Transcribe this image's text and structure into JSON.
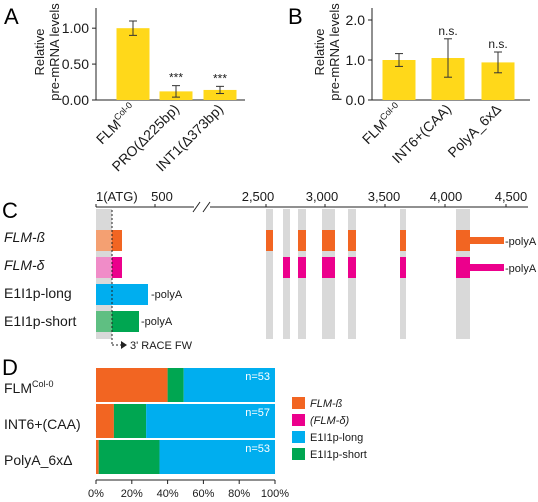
{
  "panels": {
    "A": {
      "letter": "A",
      "ylabel_lines": [
        "Relative",
        "pre-mRNA levels"
      ],
      "categories": [
        {
          "main": "FLM",
          "sup": "Col-0"
        },
        {
          "main": "PRO(Δ225bp)",
          "sup": ""
        },
        {
          "main": "INT1(Δ373bp)",
          "sup": ""
        }
      ],
      "ytick_labels": [
        "0.00",
        "0.50",
        "1.00"
      ],
      "significance": [
        "",
        "***",
        "***"
      ]
    },
    "B": {
      "letter": "B",
      "ylabel_lines": [
        "Relative",
        "pre-mRNA levels"
      ],
      "categories": [
        {
          "main": "FLM",
          "sup": "Col-0"
        },
        {
          "main": "INT6+(CAA)",
          "sup": ""
        },
        {
          "main": "PolyA_6xΔ",
          "sup": ""
        }
      ],
      "ytick_labels": [
        "0.0",
        "1.0",
        "2.0"
      ],
      "significance": [
        "",
        "n.s.",
        "n.s."
      ]
    },
    "C": {
      "letter": "C",
      "axis_labels_left": [
        "1(ATG)",
        "500"
      ],
      "axis_labels_right": [
        "2,500",
        "3,000",
        "3,500",
        "4,000",
        "4,500"
      ],
      "tracks": [
        {
          "label": "FLM-ß",
          "italic": true,
          "color": "#f26522",
          "end_text": "-polyA"
        },
        {
          "label": "FLM-δ",
          "italic": true,
          "color": "#ec008c",
          "end_text": "-polyA"
        },
        {
          "label": "E1I1p-long",
          "italic": false,
          "color": "#00aeef",
          "end_text": "-polyA"
        },
        {
          "label": "E1I1p-short",
          "italic": false,
          "color": "#00a651",
          "end_text": "-polyA"
        }
      ],
      "primer_label": "3' RACE FW"
    },
    "D": {
      "letter": "D",
      "rows": [
        {
          "main": "FLM",
          "sup": "Col-0",
          "n_label": "n=53"
        },
        {
          "main": "INT6+(CAA)",
          "sup": "",
          "n_label": "n=57"
        },
        {
          "main": "PolyA_6xΔ",
          "sup": "",
          "n_label": "n=53"
        }
      ],
      "xtick_labels": [
        "0%",
        "20%",
        "40%",
        "60%",
        "80%",
        "100%"
      ],
      "legend": [
        {
          "label": "FLM-ß",
          "italic": true,
          "color": "#f26522"
        },
        {
          "label": "(FLM-δ)",
          "italic": true,
          "color": "#ec008c"
        },
        {
          "label": "E1I1p-long",
          "italic": false,
          "color": "#00aeef"
        },
        {
          "label": "E1I1p-short",
          "italic": false,
          "color": "#00a651"
        }
      ]
    }
  },
  "chart_data": [
    {
      "type": "bar",
      "categories": [
        "FLM Col-0",
        "PRO(Δ225bp)",
        "INT1(Δ373bp)"
      ],
      "values": [
        1.0,
        0.12,
        0.14
      ],
      "errors": [
        0.1,
        0.08,
        0.05
      ],
      "ylim": [
        0,
        1.1
      ],
      "bar_color": "#ffd81a",
      "grid": false
    },
    {
      "type": "bar",
      "categories": [
        "FLM Col-0",
        "INT6+(CAA)",
        "PolyA_6xΔ"
      ],
      "values": [
        1.0,
        1.05,
        0.94
      ],
      "errors": [
        0.16,
        0.48,
        0.26
      ],
      "ylim": [
        0,
        2.1
      ],
      "bar_color": "#ffd81a",
      "grid": false
    },
    {
      "type": "bar",
      "stacked": true,
      "orientation": "horizontal",
      "categories": [
        "FLM Col-0",
        "INT6+(CAA)",
        "PolyA_6xΔ"
      ],
      "series": [
        {
          "name": "FLM-ß",
          "values": [
            40,
            10,
            1.5
          ],
          "color": "#f26522"
        },
        {
          "name": "(FLM-δ)",
          "values": [
            0,
            0,
            0
          ],
          "color": "#ec008c"
        },
        {
          "name": "E1I1p-short",
          "values": [
            9,
            18,
            34
          ],
          "color": "#00a651"
        },
        {
          "name": "E1I1p-long",
          "values": [
            51,
            72,
            64.5
          ],
          "color": "#00aeef"
        }
      ],
      "xlim": [
        0,
        100
      ],
      "grid": false,
      "legend_placement": "right"
    }
  ]
}
